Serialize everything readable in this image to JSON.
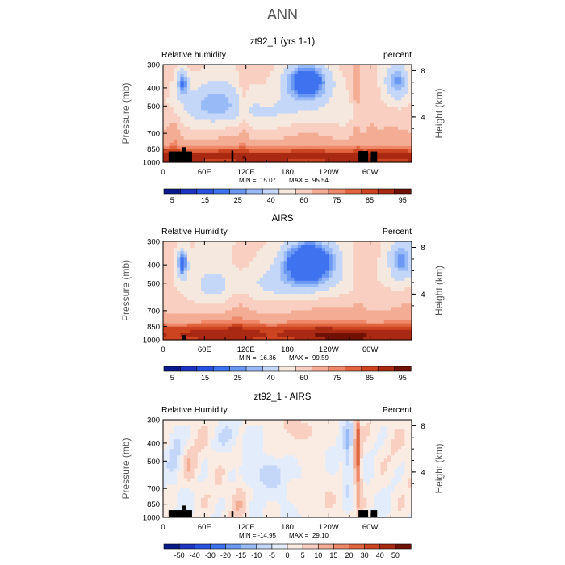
{
  "figure": {
    "title": "ANN"
  },
  "colors": {
    "relative_humidity_scale": [
      "#0a1a8a",
      "#1d35c2",
      "#2a52e0",
      "#3f72ef",
      "#6a98f3",
      "#98baf6",
      "#c4d7f8",
      "#f5e9df",
      "#f8cfc0",
      "#f4ad95",
      "#ee8868",
      "#e0653e",
      "#cc4420",
      "#a92912",
      "#6f1105"
    ],
    "difference_scale": [
      "#0a1a8a",
      "#1d35c2",
      "#2a52e0",
      "#3f72ef",
      "#6a98f3",
      "#98baf6",
      "#c4d7f8",
      "#e3ecfa",
      "#fbece3",
      "#f8cfc0",
      "#f4ad95",
      "#ee8868",
      "#e0653e",
      "#cc4420",
      "#a92912",
      "#6f1105"
    ],
    "land_mask": "#000000",
    "frame": "#000000"
  },
  "chart_data": [
    {
      "type": "heatmap",
      "title": "zt92_1 (yrs 1-1)",
      "corner_left": "Relative humidity",
      "corner_right": "percent",
      "ylabel": "Pressure (mb)",
      "ylabel_right": "Height (km)",
      "x_ticks": [
        "0",
        "60E",
        "120E",
        "180",
        "120W",
        "60W"
      ],
      "x_tick_lon": [
        0,
        60,
        120,
        180,
        240,
        300
      ],
      "xlim": [
        0,
        360
      ],
      "y_ticks": [
        "300",
        "400",
        "500",
        "700",
        "850",
        "1000"
      ],
      "y_tick_mb": [
        300,
        400,
        500,
        700,
        850,
        1000
      ],
      "ylim_mb": [
        1000,
        300
      ],
      "y_scale": "log",
      "height_ticks": [
        "8",
        "4"
      ],
      "height_tick_km": [
        8,
        4
      ],
      "min_label": "MIN =",
      "min_value": "15.07",
      "max_label": "MAX =",
      "max_value": "95.54",
      "colorbar_labels": [
        "5",
        "15",
        "25",
        "40",
        "60",
        "75",
        "85",
        "95"
      ],
      "field": "rh"
    },
    {
      "type": "heatmap",
      "title": "AIRS",
      "corner_left": "Relative Humidity",
      "corner_right": "Percent",
      "ylabel": "Pressure (mb)",
      "ylabel_right": "Height (km)",
      "x_ticks": [
        "0",
        "60E",
        "120E",
        "180",
        "120W",
        "60W"
      ],
      "x_tick_lon": [
        0,
        60,
        120,
        180,
        240,
        300
      ],
      "xlim": [
        0,
        360
      ],
      "y_ticks": [
        "300",
        "400",
        "500",
        "700",
        "850",
        "1000"
      ],
      "y_tick_mb": [
        300,
        400,
        500,
        700,
        850,
        1000
      ],
      "ylim_mb": [
        1000,
        300
      ],
      "y_scale": "log",
      "height_ticks": [
        "8",
        "4"
      ],
      "height_tick_km": [
        8,
        4
      ],
      "min_label": "MIN =",
      "min_value": "16.36",
      "max_label": "MAX =",
      "max_value": "99.59",
      "colorbar_labels": [
        "5",
        "15",
        "25",
        "40",
        "60",
        "75",
        "85",
        "95"
      ],
      "field": "airs"
    },
    {
      "type": "heatmap",
      "title": "zt92_1 - AIRS",
      "corner_left": "Relative Humidity",
      "corner_right": "Percent",
      "ylabel": "Pressure (mb)",
      "ylabel_right": "Height (km)",
      "x_ticks": [
        "0",
        "60E",
        "120E",
        "180",
        "120W",
        "60W"
      ],
      "x_tick_lon": [
        0,
        60,
        120,
        180,
        240,
        300
      ],
      "xlim": [
        0,
        360
      ],
      "y_ticks": [
        "300",
        "400",
        "500",
        "700",
        "850",
        "1000"
      ],
      "y_tick_mb": [
        300,
        400,
        500,
        700,
        850,
        1000
      ],
      "ylim_mb": [
        1000,
        300
      ],
      "y_scale": "log",
      "height_ticks": [
        "8",
        "4"
      ],
      "height_tick_km": [
        8,
        4
      ],
      "min_label": "MIN =",
      "min_value": "-14.95",
      "max_label": "MAX =",
      "max_value": "29.10",
      "colorbar_labels": [
        "-50",
        "-40",
        "-30",
        "-20",
        "-15",
        "-10",
        "-5",
        "0",
        "5",
        "10",
        "15",
        "20",
        "30",
        "40",
        "50"
      ],
      "field": "diff"
    }
  ]
}
